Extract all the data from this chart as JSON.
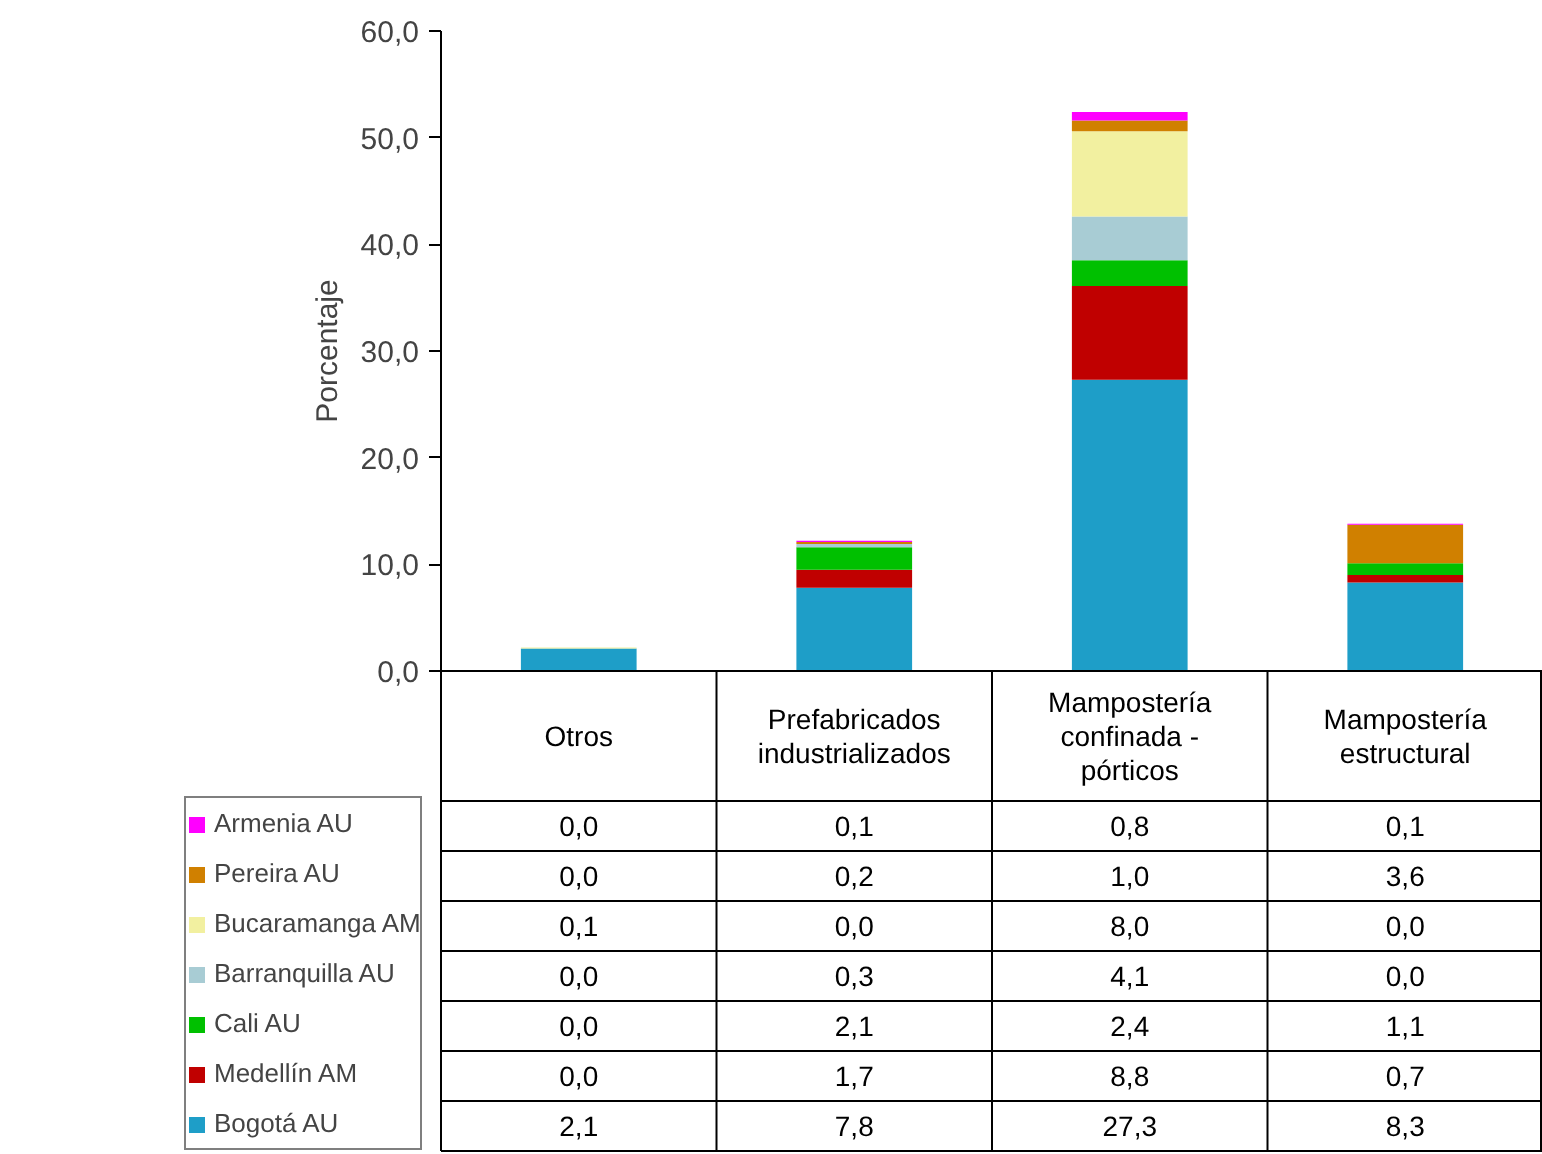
{
  "chart_data": {
    "type": "bar",
    "stacked": true,
    "ylabel": "Porcentaje",
    "categories": [
      "Otros",
      "Prefabricados industrializados",
      "Mampostería confinada - pórticos",
      "Mampostería estructural"
    ],
    "ylim": [
      0,
      60
    ],
    "yticks": [
      {
        "value": 0,
        "label": "0,0"
      },
      {
        "value": 10,
        "label": "10,0"
      },
      {
        "value": 20,
        "label": "20,0"
      },
      {
        "value": 30,
        "label": "30,0"
      },
      {
        "value": 40,
        "label": "40,0"
      },
      {
        "value": 50,
        "label": "50,0"
      },
      {
        "value": 60,
        "label": "60,0"
      }
    ],
    "grid": false,
    "legend": "bottom left",
    "series": [
      {
        "name": "Bogotá AU",
        "color": "#1e9ec8",
        "values": [
          2.1,
          7.8,
          27.3,
          8.3
        ],
        "value_labels": [
          "2,1",
          "7,8",
          "27,3",
          "8,3"
        ]
      },
      {
        "name": "Medellín AM",
        "color": "#c00000",
        "values": [
          0.0,
          1.7,
          8.8,
          0.7
        ],
        "value_labels": [
          "0,0",
          "1,7",
          "8,8",
          "0,7"
        ]
      },
      {
        "name": "Cali AU",
        "color": "#00c000",
        "values": [
          0.0,
          2.1,
          2.4,
          1.1
        ],
        "value_labels": [
          "0,0",
          "2,1",
          "2,4",
          "1,1"
        ]
      },
      {
        "name": "Barranquilla AU",
        "color": "#a8ccd4",
        "values": [
          0.0,
          0.3,
          4.1,
          0.0
        ],
        "value_labels": [
          "0,0",
          "0,3",
          "4,1",
          "0,0"
        ]
      },
      {
        "name": "Bucaramanga AM",
        "color": "#f2f0a0",
        "values": [
          0.1,
          0.0,
          8.0,
          0.0
        ],
        "value_labels": [
          "0,1",
          "0,0",
          "8,0",
          "0,0"
        ]
      },
      {
        "name": "Pereira AU",
        "color": "#d08000",
        "values": [
          0.0,
          0.2,
          1.0,
          3.6
        ],
        "value_labels": [
          "0,0",
          "0,2",
          "1,0",
          "3,6"
        ]
      },
      {
        "name": "Armenia AU",
        "color": "#ff00ff",
        "values": [
          0.0,
          0.1,
          0.8,
          0.1
        ],
        "value_labels": [
          "0,0",
          "0,1",
          "0,8",
          "0,1"
        ]
      }
    ]
  }
}
